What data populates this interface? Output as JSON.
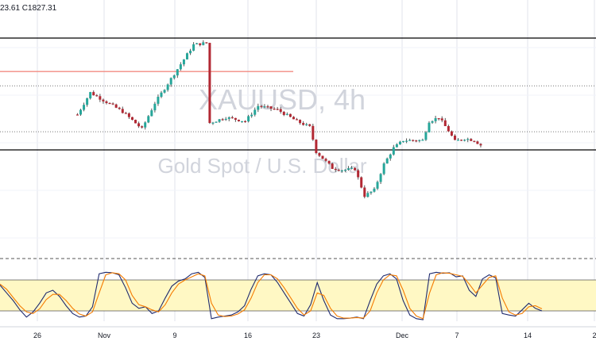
{
  "header": {
    "ohlc_text": "23.61  C1827.31"
  },
  "watermark": {
    "symbol": "XAUUSD, 4h",
    "name": "Gold Spot / U.S. Dollar"
  },
  "colors": {
    "up": "#26a69a",
    "down": "#b22833",
    "wick": "#555555",
    "stoch_k": "#1f2a6e",
    "stoch_d": "#f57c00",
    "stoch_band": "#fff8c4",
    "resistance": "#f28b82",
    "level_line": "#000000",
    "grid": "#e0e3eb",
    "watermark": "#d1d4dc"
  },
  "chart_data": [
    {
      "type": "candlestick",
      "symbol": "XAUUSD",
      "timeframe": "4h",
      "title": "",
      "xlabel": "",
      "ylabel": "",
      "x_tick_labels": [
        "26",
        "Nov",
        "9",
        "16",
        "23",
        "Dec",
        "7",
        "14",
        "2"
      ],
      "grid": true,
      "price_anchors": [
        {
          "price": 1885,
          "x_day": 12
        },
        {
          "price": 1908,
          "x_day": 14
        },
        {
          "price": 1888,
          "x_day": 19
        },
        {
          "price": 1870,
          "x_day": 22
        },
        {
          "price": 1897,
          "x_day": 24
        },
        {
          "price": 1958,
          "x_day": 30
        },
        {
          "price": 1960,
          "x_day": 32
        },
        {
          "price": 1876,
          "x_day": 32.4
        },
        {
          "price": 1882,
          "x_day": 35
        },
        {
          "price": 1878,
          "x_day": 38
        },
        {
          "price": 1894,
          "x_day": 40
        },
        {
          "price": 1890,
          "x_day": 43
        },
        {
          "price": 1878,
          "x_day": 46
        },
        {
          "price": 1872,
          "x_day": 48
        },
        {
          "price": 1846,
          "x_day": 49
        },
        {
          "price": 1829,
          "x_day": 51.5
        },
        {
          "price": 1827,
          "x_day": 53
        },
        {
          "price": 1828,
          "x_day": 55
        },
        {
          "price": 1800,
          "x_day": 56.5
        },
        {
          "price": 1806,
          "x_day": 58
        },
        {
          "price": 1833,
          "x_day": 59.5
        },
        {
          "price": 1850,
          "x_day": 61
        },
        {
          "price": 1858,
          "x_day": 62.5
        },
        {
          "price": 1858,
          "x_day": 64
        },
        {
          "price": 1858,
          "x_day": 65.5
        },
        {
          "price": 1878,
          "x_day": 66.5
        },
        {
          "price": 1882,
          "x_day": 68
        },
        {
          "price": 1868,
          "x_day": 69.5
        },
        {
          "price": 1857,
          "x_day": 70.5
        },
        {
          "price": 1860,
          "x_day": 72
        },
        {
          "price": 1858,
          "x_day": 73.5
        },
        {
          "price": 1853,
          "x_day": 74.5
        }
      ],
      "levels": [
        {
          "name": "upper channel",
          "price": 1965,
          "style": "solid"
        },
        {
          "name": "resistance",
          "price": 1930,
          "style": "solid-red",
          "x_day_start": 0,
          "x_day_end": 42
        },
        {
          "name": "dotted level 1",
          "price": 1915,
          "style": "dotted"
        },
        {
          "name": "dotted level 2",
          "price": 1867,
          "style": "dotted"
        },
        {
          "name": "lower channel",
          "price": 1848,
          "style": "solid"
        }
      ]
    },
    {
      "type": "line",
      "indicator": "Stochastic",
      "title": "",
      "ylim": [
        0,
        100
      ],
      "band": [
        20,
        80
      ],
      "series": [
        {
          "key": "K",
          "points": [
            [
              0,
              70
            ],
            [
              1,
              55
            ],
            [
              2,
              40
            ],
            [
              3,
              22
            ],
            [
              4,
              8
            ],
            [
              5,
              18
            ],
            [
              6,
              35
            ],
            [
              7,
              55
            ],
            [
              8,
              60
            ],
            [
              9,
              48
            ],
            [
              10,
              30
            ],
            [
              11,
              15
            ],
            [
              12,
              8
            ],
            [
              13,
              10
            ],
            [
              14,
              28
            ],
            [
              15,
              92
            ],
            [
              16,
              95
            ],
            [
              17,
              94
            ],
            [
              18,
              90
            ],
            [
              19,
              65
            ],
            [
              20,
              35
            ],
            [
              21,
              25
            ],
            [
              22,
              28
            ],
            [
              23,
              15
            ],
            [
              24,
              20
            ],
            [
              25,
              45
            ],
            [
              26,
              68
            ],
            [
              27,
              78
            ],
            [
              28,
              82
            ],
            [
              29,
              92
            ],
            [
              30,
              95
            ],
            [
              31,
              85
            ],
            [
              32,
              5
            ],
            [
              33,
              8
            ],
            [
              34,
              10
            ],
            [
              35,
              12
            ],
            [
              36,
              18
            ],
            [
              37,
              30
            ],
            [
              38,
              62
            ],
            [
              39,
              88
            ],
            [
              40,
              92
            ],
            [
              41,
              90
            ],
            [
              42,
              75
            ],
            [
              43,
              55
            ],
            [
              44,
              35
            ],
            [
              45,
              15
            ],
            [
              46,
              10
            ],
            [
              47,
              32
            ],
            [
              48,
              75
            ],
            [
              49,
              40
            ],
            [
              50,
              12
            ],
            [
              51,
              5
            ],
            [
              52,
              5
            ],
            [
              53,
              6
            ],
            [
              54,
              8
            ],
            [
              55,
              5
            ],
            [
              56,
              40
            ],
            [
              57,
              72
            ],
            [
              58,
              88
            ],
            [
              59,
              92
            ],
            [
              60,
              82
            ],
            [
              61,
              40
            ],
            [
              62,
              12
            ],
            [
              63,
              5
            ],
            [
              64,
              3
            ],
            [
              65,
              92
            ],
            [
              66,
              95
            ],
            [
              67,
              93
            ],
            [
              68,
              94
            ],
            [
              69,
              86
            ],
            [
              70,
              88
            ],
            [
              71,
              60
            ],
            [
              72,
              48
            ],
            [
              73,
              82
            ],
            [
              74,
              90
            ],
            [
              75,
              84
            ],
            [
              76,
              15
            ],
            [
              77,
              12
            ],
            [
              78,
              10
            ],
            [
              79,
              22
            ],
            [
              80,
              35
            ],
            [
              81,
              25
            ],
            [
              82,
              20
            ]
          ]
        },
        {
          "key": "D",
          "points": [
            [
              0,
              72
            ],
            [
              1,
              62
            ],
            [
              2,
              46
            ],
            [
              3,
              30
            ],
            [
              4,
              18
            ],
            [
              5,
              15
            ],
            [
              6,
              24
            ],
            [
              7,
              42
            ],
            [
              8,
              52
            ],
            [
              9,
              52
            ],
            [
              10,
              40
            ],
            [
              11,
              25
            ],
            [
              12,
              14
            ],
            [
              13,
              10
            ],
            [
              14,
              18
            ],
            [
              15,
              55
            ],
            [
              16,
              90
            ],
            [
              17,
              94
            ],
            [
              18,
              92
            ],
            [
              19,
              80
            ],
            [
              20,
              50
            ],
            [
              21,
              32
            ],
            [
              22,
              28
            ],
            [
              23,
              22
            ],
            [
              24,
              18
            ],
            [
              25,
              32
            ],
            [
              26,
              55
            ],
            [
              27,
              72
            ],
            [
              28,
              80
            ],
            [
              29,
              86
            ],
            [
              30,
              92
            ],
            [
              31,
              88
            ],
            [
              32,
              35
            ],
            [
              33,
              12
            ],
            [
              34,
              9
            ],
            [
              35,
              10
            ],
            [
              36,
              14
            ],
            [
              37,
              22
            ],
            [
              38,
              45
            ],
            [
              39,
              75
            ],
            [
              40,
              90
            ],
            [
              41,
              90
            ],
            [
              42,
              82
            ],
            [
              43,
              65
            ],
            [
              44,
              45
            ],
            [
              45,
              25
            ],
            [
              46,
              12
            ],
            [
              47,
              20
            ],
            [
              48,
              55
            ],
            [
              49,
              50
            ],
            [
              50,
              25
            ],
            [
              51,
              10
            ],
            [
              52,
              6
            ],
            [
              53,
              6
            ],
            [
              54,
              7
            ],
            [
              55,
              6
            ],
            [
              56,
              20
            ],
            [
              57,
              55
            ],
            [
              58,
              80
            ],
            [
              59,
              90
            ],
            [
              60,
              88
            ],
            [
              61,
              60
            ],
            [
              62,
              25
            ],
            [
              63,
              10
            ],
            [
              64,
              5
            ],
            [
              65,
              55
            ],
            [
              66,
              90
            ],
            [
              67,
              94
            ],
            [
              68,
              93
            ],
            [
              69,
              90
            ],
            [
              70,
              87
            ],
            [
              71,
              72
            ],
            [
              72,
              55
            ],
            [
              73,
              70
            ],
            [
              74,
              85
            ],
            [
              75,
              88
            ],
            [
              76,
              45
            ],
            [
              77,
              18
            ],
            [
              78,
              12
            ],
            [
              79,
              15
            ],
            [
              80,
              28
            ],
            [
              81,
              30
            ],
            [
              82,
              24
            ]
          ]
        }
      ]
    }
  ]
}
